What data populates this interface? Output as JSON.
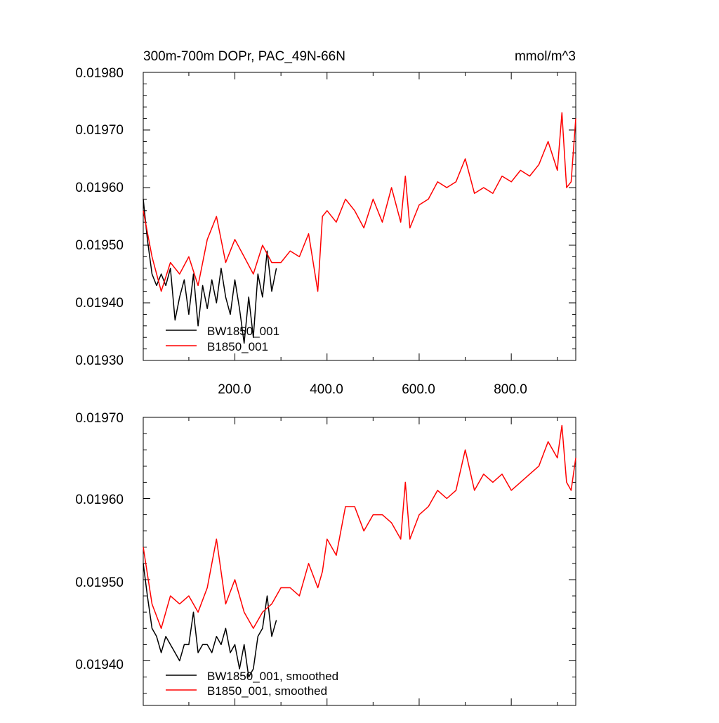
{
  "chart_data": [
    {
      "type": "line",
      "title_left": "300m-700m DOPr, PAC_49N-66N",
      "title_right": "mmol/m^3",
      "xlim": [
        1,
        940
      ],
      "ylim": [
        0.0193,
        0.0198
      ],
      "xticks": [
        200,
        400,
        600,
        800
      ],
      "xtick_labels": [
        "200.0",
        "400.0",
        "600.0",
        "800.0"
      ],
      "yticks": [
        0.0193,
        0.0194,
        0.0195,
        0.0196,
        0.0197,
        0.0198
      ],
      "ytick_labels": [
        "0.01930",
        "0.01940",
        "0.01950",
        "0.01960",
        "0.01970",
        "0.01980"
      ],
      "legend_position": "bottom-left",
      "grid": false,
      "series": [
        {
          "name": "BW1850_001",
          "color": "#000000",
          "x": [
            1,
            10,
            20,
            30,
            40,
            50,
            60,
            70,
            80,
            90,
            100,
            110,
            120,
            130,
            140,
            150,
            160,
            170,
            180,
            190,
            200,
            210,
            220,
            230,
            240,
            250,
            260,
            270,
            280,
            290
          ],
          "y": [
            0.01958,
            0.01951,
            0.01945,
            0.01943,
            0.01945,
            0.01943,
            0.01946,
            0.01937,
            0.01941,
            0.01944,
            0.01938,
            0.01945,
            0.01936,
            0.01943,
            0.01939,
            0.01944,
            0.0194,
            0.01946,
            0.01941,
            0.01938,
            0.01944,
            0.01939,
            0.01933,
            0.01941,
            0.01934,
            0.01945,
            0.01941,
            0.01949,
            0.01942,
            0.01946
          ]
        },
        {
          "name": "B1850_001",
          "color": "#ff0000",
          "x": [
            1,
            20,
            40,
            60,
            80,
            100,
            120,
            140,
            160,
            180,
            200,
            220,
            240,
            260,
            280,
            300,
            320,
            340,
            360,
            380,
            390,
            400,
            420,
            440,
            460,
            480,
            500,
            520,
            540,
            560,
            570,
            580,
            600,
            620,
            640,
            660,
            680,
            700,
            720,
            740,
            760,
            780,
            800,
            820,
            840,
            860,
            880,
            900,
            910,
            920,
            930,
            940
          ],
          "y": [
            0.01956,
            0.01948,
            0.01942,
            0.01947,
            0.01945,
            0.01948,
            0.01943,
            0.01951,
            0.01955,
            0.01947,
            0.01951,
            0.01948,
            0.01945,
            0.0195,
            0.01947,
            0.01947,
            0.01949,
            0.01948,
            0.01952,
            0.01942,
            0.01955,
            0.01956,
            0.01954,
            0.01958,
            0.01956,
            0.01953,
            0.01958,
            0.01954,
            0.0196,
            0.01954,
            0.01962,
            0.01953,
            0.01957,
            0.01958,
            0.01961,
            0.0196,
            0.01961,
            0.01965,
            0.01959,
            0.0196,
            0.01959,
            0.01962,
            0.01961,
            0.01963,
            0.01962,
            0.01964,
            0.01968,
            0.01963,
            0.01973,
            0.0196,
            0.01961,
            0.01972
          ]
        }
      ]
    },
    {
      "type": "line",
      "title_left": "",
      "title_right": "",
      "xlim": [
        1,
        940
      ],
      "ylim": [
        0.019345,
        0.0197
      ],
      "xticks": [
        200,
        400,
        600,
        800
      ],
      "yticks": [
        0.0194,
        0.0195,
        0.0196,
        0.0197
      ],
      "ytick_labels": [
        "0.01940",
        "0.01950",
        "0.01960",
        "0.01970"
      ],
      "legend_position": "bottom-left",
      "grid": false,
      "series": [
        {
          "name": "BW1850_001, smoothed",
          "color": "#000000",
          "x": [
            1,
            10,
            20,
            30,
            40,
            50,
            60,
            70,
            80,
            90,
            100,
            110,
            120,
            130,
            140,
            150,
            160,
            170,
            180,
            190,
            200,
            210,
            220,
            230,
            240,
            250,
            260,
            270,
            280,
            290
          ],
          "y": [
            0.01952,
            0.01948,
            0.01944,
            0.01943,
            0.01941,
            0.01943,
            0.01942,
            0.01941,
            0.0194,
            0.01942,
            0.01942,
            0.01946,
            0.01941,
            0.01942,
            0.01942,
            0.01941,
            0.01943,
            0.01942,
            0.01944,
            0.01941,
            0.01942,
            0.01939,
            0.01942,
            0.01938,
            0.01939,
            0.01943,
            0.01944,
            0.01948,
            0.01943,
            0.01945
          ]
        },
        {
          "name": "B1850_001, smoothed",
          "color": "#ff0000",
          "x": [
            1,
            20,
            40,
            60,
            80,
            100,
            120,
            140,
            160,
            180,
            200,
            220,
            240,
            260,
            280,
            300,
            320,
            340,
            360,
            380,
            390,
            400,
            420,
            440,
            460,
            480,
            500,
            520,
            540,
            560,
            570,
            580,
            600,
            620,
            640,
            660,
            680,
            700,
            720,
            740,
            760,
            780,
            800,
            820,
            840,
            860,
            880,
            900,
            910,
            920,
            930,
            940
          ],
          "y": [
            0.01954,
            0.01947,
            0.01944,
            0.01948,
            0.01947,
            0.01948,
            0.01946,
            0.01949,
            0.01955,
            0.01947,
            0.0195,
            0.01946,
            0.01944,
            0.01946,
            0.01947,
            0.01949,
            0.01949,
            0.01948,
            0.01952,
            0.01949,
            0.01951,
            0.01955,
            0.01953,
            0.01959,
            0.01959,
            0.01956,
            0.01958,
            0.01958,
            0.01957,
            0.01955,
            0.01962,
            0.01955,
            0.01958,
            0.01959,
            0.01961,
            0.0196,
            0.01961,
            0.01966,
            0.01961,
            0.01963,
            0.01962,
            0.01963,
            0.01961,
            0.01962,
            0.01963,
            0.01964,
            0.01967,
            0.01965,
            0.01969,
            0.01962,
            0.01961,
            0.01965
          ]
        }
      ]
    }
  ]
}
